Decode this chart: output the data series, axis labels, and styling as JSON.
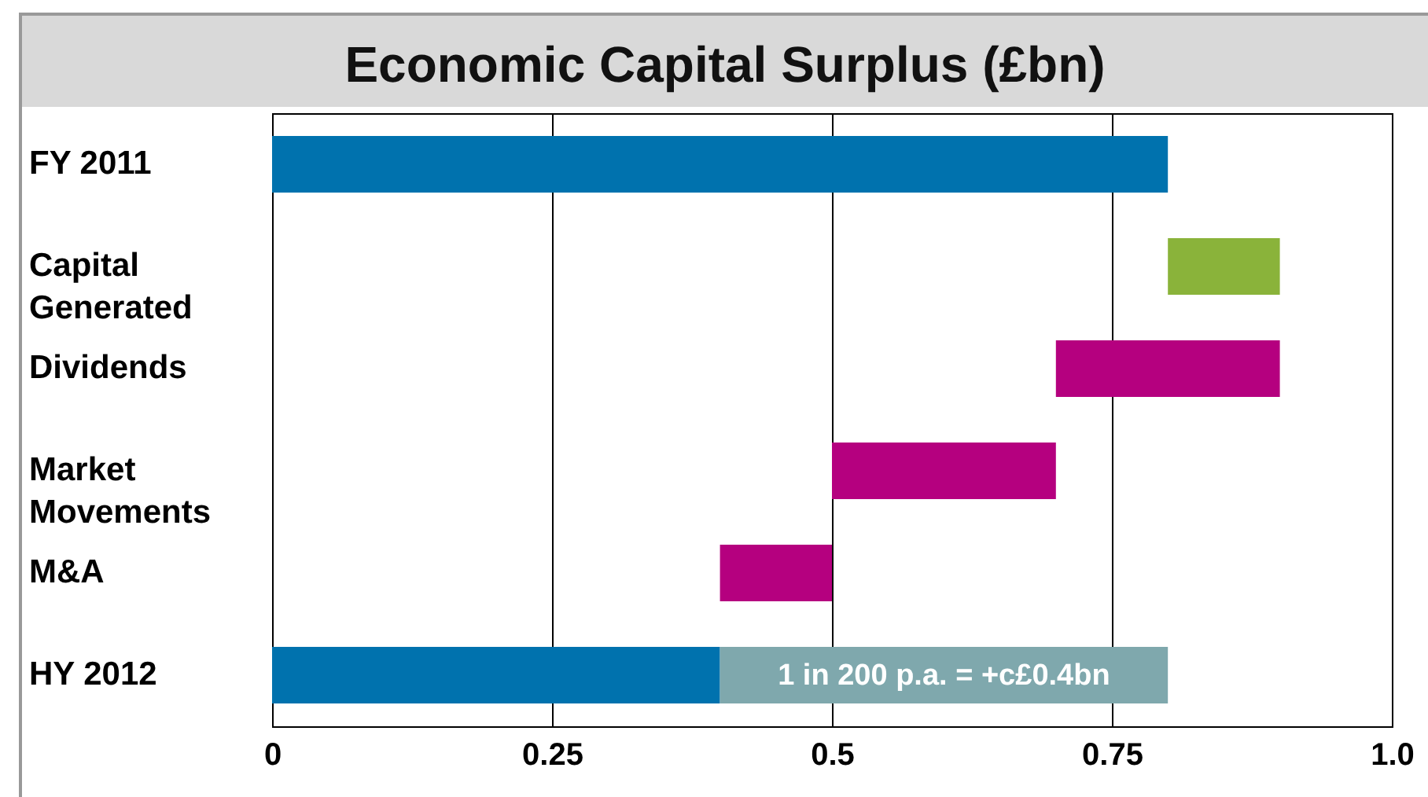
{
  "chart_data": {
    "type": "bar",
    "orientation": "horizontal",
    "title": "Economic Capital Surplus (£bn)",
    "categories": [
      "FY 2011",
      "Capital Generated",
      "Dividends",
      "Market Movements",
      "M&A",
      "HY 2012"
    ],
    "series": [
      {
        "colors": [
          "#0072ae",
          "#8ab33a",
          "#b5007f",
          "#b5007f",
          "#b5007f",
          "#0072ae"
        ],
        "base": [
          0,
          0.8,
          0.9,
          0.7,
          0.5,
          0
        ],
        "values": [
          0.8,
          0.1,
          -0.2,
          -0.2,
          -0.1,
          0.4
        ]
      },
      {
        "color": "#7fa8ad",
        "base": [
          null,
          null,
          null,
          null,
          null,
          0.4
        ],
        "values": [
          null,
          null,
          null,
          null,
          null,
          0.4
        ]
      }
    ],
    "xlim": [
      0,
      1
    ],
    "xticks": [
      0,
      0.25,
      0.5,
      {
        "value": 1,
        "label": "1.0"
      },
      0.75
    ],
    "grid": "x",
    "annotations": [
      "1 in 200 p.a. = +c£0.4bn"
    ]
  }
}
